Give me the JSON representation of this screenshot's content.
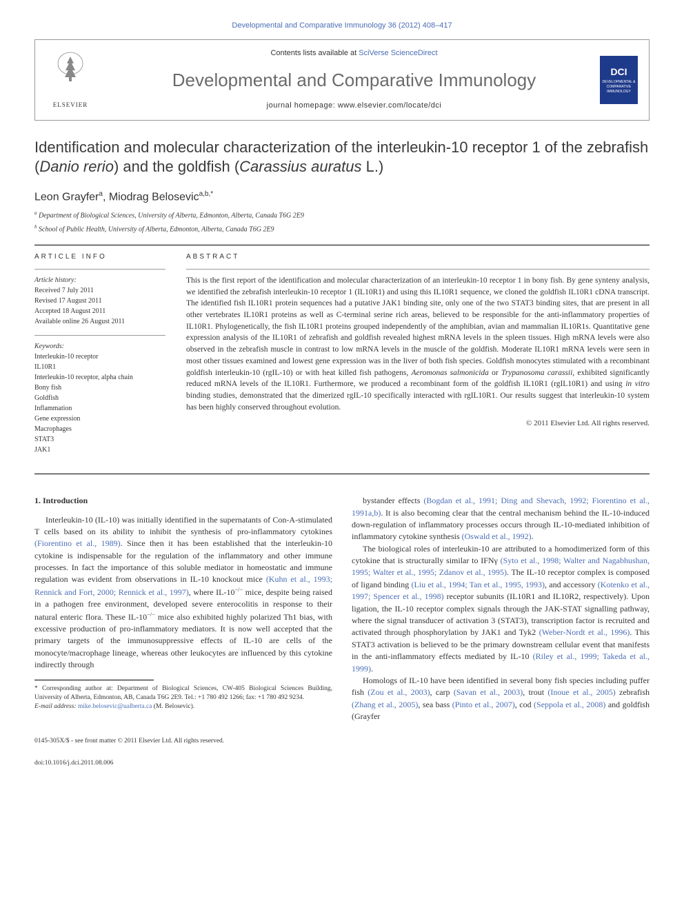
{
  "journalCitation": "Developmental and Comparative Immunology 36 (2012) 408–417",
  "headerBox": {
    "contentsLine": "Contents lists available at ",
    "sciDirect": "SciVerse ScienceDirect",
    "journalName": "Developmental and Comparative Immunology",
    "homepagePrefix": "journal homepage: ",
    "homepageUrl": "www.elsevier.com/locate/dci",
    "elsevierLabel": "ELSEVIER",
    "dciLabel": "DCI",
    "dciSub": "DEVELOPMENTAL & COMPARATIVE IMMUNOLOGY"
  },
  "title": {
    "part1": "Identification and molecular characterization of the interleukin-10 receptor 1 of the zebrafish (",
    "italic1": "Danio rerio",
    "part2": ") and the goldfish (",
    "italic2": "Carassius auratus",
    "part3": " L.)"
  },
  "authors": {
    "a1": "Leon Grayfer",
    "a1sup": "a",
    "a2": "Miodrag Belosevic",
    "a2sup": "a,b,",
    "corr": "*"
  },
  "affiliations": {
    "a": "Department of Biological Sciences, University of Alberta, Edmonton, Alberta, Canada T6G 2E9",
    "b": "School of Public Health, University of Alberta, Edmonton, Alberta, Canada T6G 2E9"
  },
  "articleInfo": {
    "label": "ARTICLE INFO",
    "historyLabel": "Article history:",
    "received": "Received 7 July 2011",
    "revised": "Revised 17 August 2011",
    "accepted": "Accepted 18 August 2011",
    "online": "Available online 26 August 2011",
    "keywordsLabel": "Keywords:",
    "keywords": [
      "Interleukin-10 receptor",
      "IL10R1",
      "Interleukin-10 receptor, alpha chain",
      "Bony fish",
      "Goldfish",
      "Inflammation",
      "Gene expression",
      "Macrophages",
      "STAT3",
      "JAK1"
    ]
  },
  "abstract": {
    "label": "ABSTRACT",
    "text": "This is the first report of the identification and molecular characterization of an interleukin-10 receptor 1 in bony fish. By gene synteny analysis, we identified the zebrafish interleukin-10 receptor 1 (IL10R1) and using this IL10R1 sequence, we cloned the goldfish IL10R1 cDNA transcript. The identified fish IL10R1 protein sequences had a putative JAK1 binding site, only one of the two STAT3 binding sites, that are present in all other vertebrates IL10R1 proteins as well as C-terminal serine rich areas, believed to be responsible for the anti-inflammatory properties of IL10R1. Phylogenetically, the fish IL10R1 proteins grouped independently of the amphibian, avian and mammalian IL10R1s. Quantitative gene expression analysis of the IL10R1 of zebrafish and goldfish revealed highest mRNA levels in the spleen tissues. High mRNA levels were also observed in the zebrafish muscle in contrast to low mRNA levels in the muscle of the goldfish. Moderate IL10R1 mRNA levels were seen in most other tissues examined and lowest gene expression was in the liver of both fish species. Goldfish monocytes stimulated with a recombinant goldfish interleukin-10 (rgIL-10) or with heat killed fish pathogens, Aeromonas salmonicida or Trypanosoma carassii, exhibited significantly reduced mRNA levels of the IL10R1. Furthermore, we produced a recombinant form of the goldfish IL10R1 (rgIL10R1) and using in vitro binding studies, demonstrated that the dimerized rgIL-10 specifically interacted with rgIL10R1. Our results suggest that interleukin-10 system has been highly conserved throughout evolution.",
    "copyright": "© 2011 Elsevier Ltd. All rights reserved."
  },
  "intro": {
    "heading": "1. Introduction",
    "col1p1": "Interleukin-10 (IL-10) was initially identified in the supernatants of Con-A-stimulated T cells based on its ability to inhibit the synthesis of pro-inflammatory cytokines (Fiorentino et al., 1989). Since then it has been established that the interleukin-10 cytokine is indispensable for the regulation of the inflammatory and other immune processes. In fact the importance of this soluble mediator in homeostatic and immune regulation was evident from observations in IL-10 knockout mice (Kuhn et al., 1993; Rennick and Fort, 2000; Rennick et al., 1997), where IL-10−/− mice, despite being raised in a pathogen free environment, developed severe enterocolitis in response to their natural enteric flora. These IL-10−/− mice also exhibited highly polarized Th1 bias, with excessive production of pro-inflammatory mediators. It is now well accepted that the primary targets of the immunosuppressive effects of IL-10 are cells of the monocyte/macrophage lineage, whereas other leukocytes are influenced by this cytokine indirectly through",
    "col2p1": "bystander effects (Bogdan et al., 1991; Ding and Shevach, 1992; Fiorentino et al., 1991a,b). It is also becoming clear that the central mechanism behind the IL-10-induced down-regulation of inflammatory processes occurs through IL-10-mediated inhibition of inflammatory cytokine synthesis (Oswald et al., 1992).",
    "col2p2": "The biological roles of interleukin-10 are attributed to a homodimerized form of this cytokine that is structurally similar to IFNγ (Syto et al., 1998; Walter and Nagabhushan, 1995; Walter et al., 1995; Zdanov et al., 1995). The IL-10 receptor complex is composed of ligand binding (Liu et al., 1994; Tan et al., 1995, 1993), and accessory (Kotenko et al., 1997; Spencer et al., 1998) receptor subunits (IL10R1 and IL10R2, respectively). Upon ligation, the IL-10 receptor complex signals through the JAK-STAT signalling pathway, where the signal transducer of activation 3 (STAT3), transcription factor is recruited and activated through phosphorylation by JAK1 and Tyk2 (Weber-Nordt et al., 1996). This STAT3 activation is believed to be the primary downstream cellular event that manifests in the anti-inflammatory effects mediated by IL-10 (Riley et al., 1999; Takeda et al., 1999).",
    "col2p3": "Homologs of IL-10 have been identified in several bony fish species including puffer fish (Zou et al., 2003), carp (Savan et al., 2003), trout (Inoue et al., 2005) zebrafish (Zhang et al., 2005), sea bass (Pinto et al., 2007), cod (Seppola et al., 2008) and goldfish (Grayfer"
  },
  "correspondingNote": {
    "star": "*",
    "text": " Corresponding author at: Department of Biological Sciences, CW-405 Biological Sciences Building, University of Alberta, Edmonton, AB, Canada T6G 2E9. Tel.: +1 780 492 1266; fax: +1 780 492 9234.",
    "emailLabel": "E-mail address: ",
    "email": "mike.belosevic@ualberta.ca",
    "emailSuffix": " (M. Belosevic)."
  },
  "footer": {
    "line1": "0145-305X/$ - see front matter © 2011 Elsevier Ltd. All rights reserved.",
    "line2": "doi:10.1016/j.dci.2011.08.006"
  },
  "colors": {
    "link": "#4a6db5",
    "text": "#333333",
    "journalTitle": "#6b6b6b",
    "dciBg": "#1e3a8a"
  }
}
